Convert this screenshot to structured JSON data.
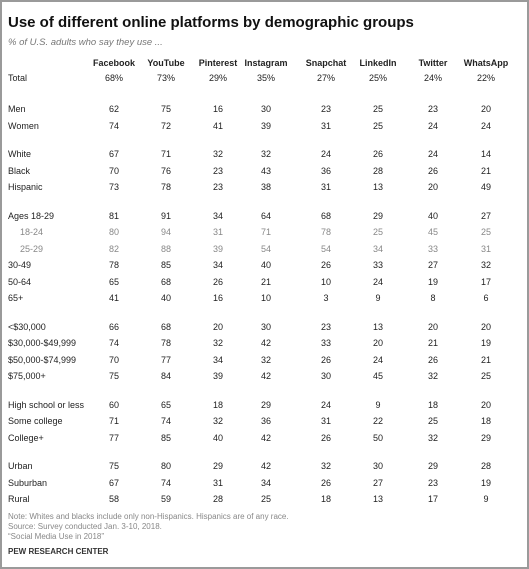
{
  "header": {
    "title": "Use of different online platforms by demographic groups",
    "subtitle": "% of U.S. adults who say they use ..."
  },
  "table": {
    "columns": [
      "Facebook",
      "YouTube",
      "Pinterest",
      "Instagram",
      "Snapchat",
      "LinkedIn",
      "Twitter",
      "WhatsApp"
    ],
    "total": {
      "label": "Total",
      "values": [
        "68%",
        "73%",
        "29%",
        "35%",
        "27%",
        "25%",
        "24%",
        "22%"
      ]
    },
    "groups": [
      {
        "rows": [
          {
            "label": "Men",
            "values": [
              "62",
              "75",
              "16",
              "30",
              "23",
              "25",
              "23",
              "20"
            ]
          },
          {
            "label": "Women",
            "values": [
              "74",
              "72",
              "41",
              "39",
              "31",
              "25",
              "24",
              "24"
            ]
          }
        ]
      },
      {
        "rows": [
          {
            "label": "White",
            "values": [
              "67",
              "71",
              "32",
              "32",
              "24",
              "26",
              "24",
              "14"
            ]
          },
          {
            "label": "Black",
            "values": [
              "70",
              "76",
              "23",
              "43",
              "36",
              "28",
              "26",
              "21"
            ]
          },
          {
            "label": "Hispanic",
            "values": [
              "73",
              "78",
              "23",
              "38",
              "31",
              "13",
              "20",
              "49"
            ]
          }
        ]
      },
      {
        "rows": [
          {
            "label": "Ages 18-29",
            "values": [
              "81",
              "91",
              "34",
              "64",
              "68",
              "29",
              "40",
              "27"
            ]
          },
          {
            "label": "18-24",
            "sub": true,
            "values": [
              "80",
              "94",
              "31",
              "71",
              "78",
              "25",
              "45",
              "25"
            ]
          },
          {
            "label": "25-29",
            "sub": true,
            "values": [
              "82",
              "88",
              "39",
              "54",
              "54",
              "34",
              "33",
              "31"
            ]
          },
          {
            "label": "30-49",
            "values": [
              "78",
              "85",
              "34",
              "40",
              "26",
              "33",
              "27",
              "32"
            ]
          },
          {
            "label": "50-64",
            "values": [
              "65",
              "68",
              "26",
              "21",
              "10",
              "24",
              "19",
              "17"
            ]
          },
          {
            "label": "65+",
            "values": [
              "41",
              "40",
              "16",
              "10",
              "3",
              "9",
              "8",
              "6"
            ]
          }
        ]
      },
      {
        "rows": [
          {
            "label": "<$30,000",
            "values": [
              "66",
              "68",
              "20",
              "30",
              "23",
              "13",
              "20",
              "20"
            ]
          },
          {
            "label": "$30,000-$49,999",
            "values": [
              "74",
              "78",
              "32",
              "42",
              "33",
              "20",
              "21",
              "19"
            ]
          },
          {
            "label": "$50,000-$74,999",
            "values": [
              "70",
              "77",
              "34",
              "32",
              "26",
              "24",
              "26",
              "21"
            ]
          },
          {
            "label": "$75,000+",
            "values": [
              "75",
              "84",
              "39",
              "42",
              "30",
              "45",
              "32",
              "25"
            ]
          }
        ]
      },
      {
        "rows": [
          {
            "label": "High school or less",
            "values": [
              "60",
              "65",
              "18",
              "29",
              "24",
              "9",
              "18",
              "20"
            ]
          },
          {
            "label": "Some college",
            "values": [
              "71",
              "74",
              "32",
              "36",
              "31",
              "22",
              "25",
              "18"
            ]
          },
          {
            "label": "College+",
            "values": [
              "77",
              "85",
              "40",
              "42",
              "26",
              "50",
              "32",
              "29"
            ]
          }
        ]
      },
      {
        "rows": [
          {
            "label": "Urban",
            "values": [
              "75",
              "80",
              "29",
              "42",
              "32",
              "30",
              "29",
              "28"
            ]
          },
          {
            "label": "Suburban",
            "values": [
              "67",
              "74",
              "31",
              "34",
              "26",
              "27",
              "23",
              "19"
            ]
          },
          {
            "label": "Rural",
            "values": [
              "58",
              "59",
              "28",
              "25",
              "18",
              "13",
              "17",
              "9"
            ]
          }
        ]
      }
    ]
  },
  "footer": {
    "notes": [
      "Note: Whites and blacks include only non-Hispanics. Hispanics are of any race.",
      "Source: Survey conducted Jan. 3-10, 2018.",
      "“Social Media Use in 2018”"
    ],
    "brand": "PEW RESEARCH CENTER"
  }
}
